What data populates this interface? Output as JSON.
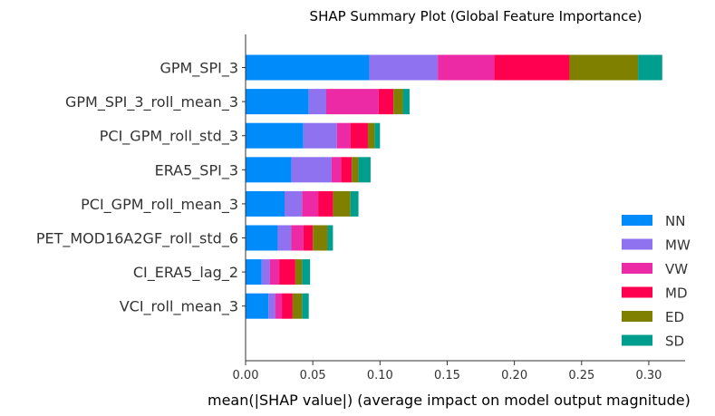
{
  "chart_data": {
    "type": "bar",
    "stacked": true,
    "orientation": "horizontal",
    "title": "SHAP Summary Plot (Global Feature Importance)",
    "xlabel": "mean(|SHAP value|) (average impact on model output magnitude)",
    "ylabel": "",
    "xlim": [
      0,
      0.327
    ],
    "xticks": [
      0.0,
      0.05,
      0.1,
      0.15,
      0.2,
      0.25,
      0.3
    ],
    "xtick_labels": [
      "0.00",
      "0.05",
      "0.10",
      "0.15",
      "0.20",
      "0.25",
      "0.30"
    ],
    "categories": [
      "GPM_SPI_3",
      "GPM_SPI_3_roll_mean_3",
      "PCI_GPM_roll_std_3",
      "ERA5_SPI_3",
      "PCI_GPM_roll_mean_3",
      "PET_MOD16A2GF_roll_std_6",
      "CI_ERA5_lag_2",
      "VCI_roll_mean_3"
    ],
    "series": [
      {
        "name": "NN",
        "color": "#008bfb",
        "values": [
          0.092,
          0.047,
          0.043,
          0.034,
          0.029,
          0.024,
          0.012,
          0.017
        ]
      },
      {
        "name": "MW",
        "color": "#8f72f0",
        "values": [
          0.051,
          0.013,
          0.025,
          0.03,
          0.013,
          0.01,
          0.006,
          0.005
        ]
      },
      {
        "name": "VW",
        "color": "#ec2aa6",
        "values": [
          0.042,
          0.039,
          0.01,
          0.007,
          0.012,
          0.009,
          0.007,
          0.005
        ]
      },
      {
        "name": "MD",
        "color": "#ff0051",
        "values": [
          0.056,
          0.011,
          0.013,
          0.008,
          0.011,
          0.007,
          0.012,
          0.008
        ]
      },
      {
        "name": "ED",
        "color": "#808000",
        "values": [
          0.051,
          0.007,
          0.005,
          0.005,
          0.013,
          0.011,
          0.005,
          0.007
        ]
      },
      {
        "name": "SD",
        "color": "#009e8e",
        "values": [
          0.018,
          0.005,
          0.004,
          0.009,
          0.006,
          0.004,
          0.006,
          0.005
        ]
      }
    ],
    "legend_position": "bottom-right",
    "grid": false
  }
}
